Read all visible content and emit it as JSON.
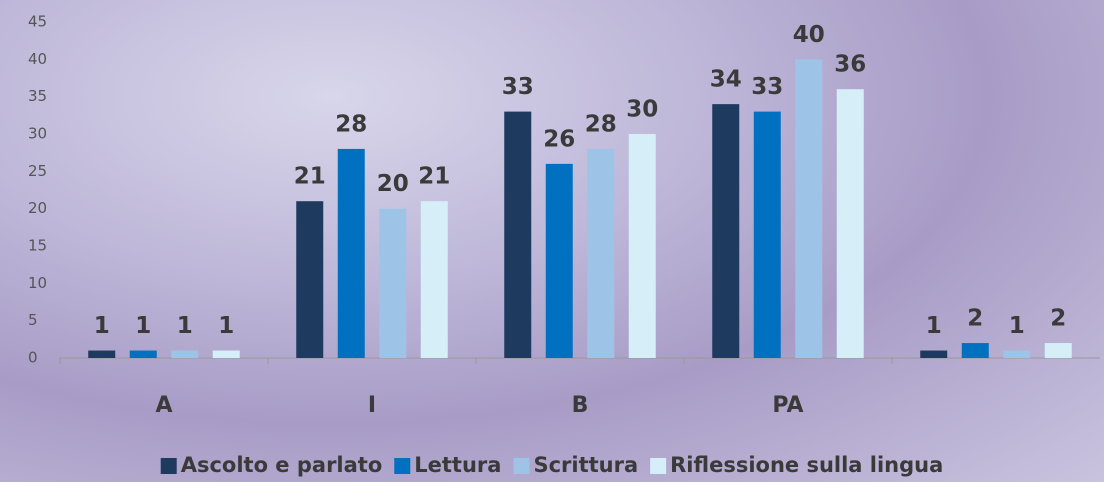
{
  "chart_data": {
    "type": "bar",
    "categories": [
      "A",
      "I",
      "B",
      "PA",
      null
    ],
    "series": [
      {
        "name": "Ascolto e parlato",
        "color": "#1f3a5f",
        "values": [
          1,
          21,
          33,
          34,
          1
        ]
      },
      {
        "name": "Lettura",
        "color": "#0070c0",
        "values": [
          1,
          28,
          26,
          33,
          2
        ]
      },
      {
        "name": "Scrittura",
        "color": "#9dc3e6",
        "values": [
          1,
          20,
          28,
          40,
          1
        ]
      },
      {
        "name": "Riflessione sulla lingua",
        "color": "#d6eef8",
        "values": [
          1,
          21,
          30,
          36,
          2
        ]
      }
    ],
    "ylim": [
      0,
      45
    ],
    "yticks": [
      0,
      5,
      10,
      15,
      20,
      25,
      30,
      35,
      40,
      45
    ],
    "grid": false,
    "data_labels": true,
    "legend": "bottom"
  }
}
